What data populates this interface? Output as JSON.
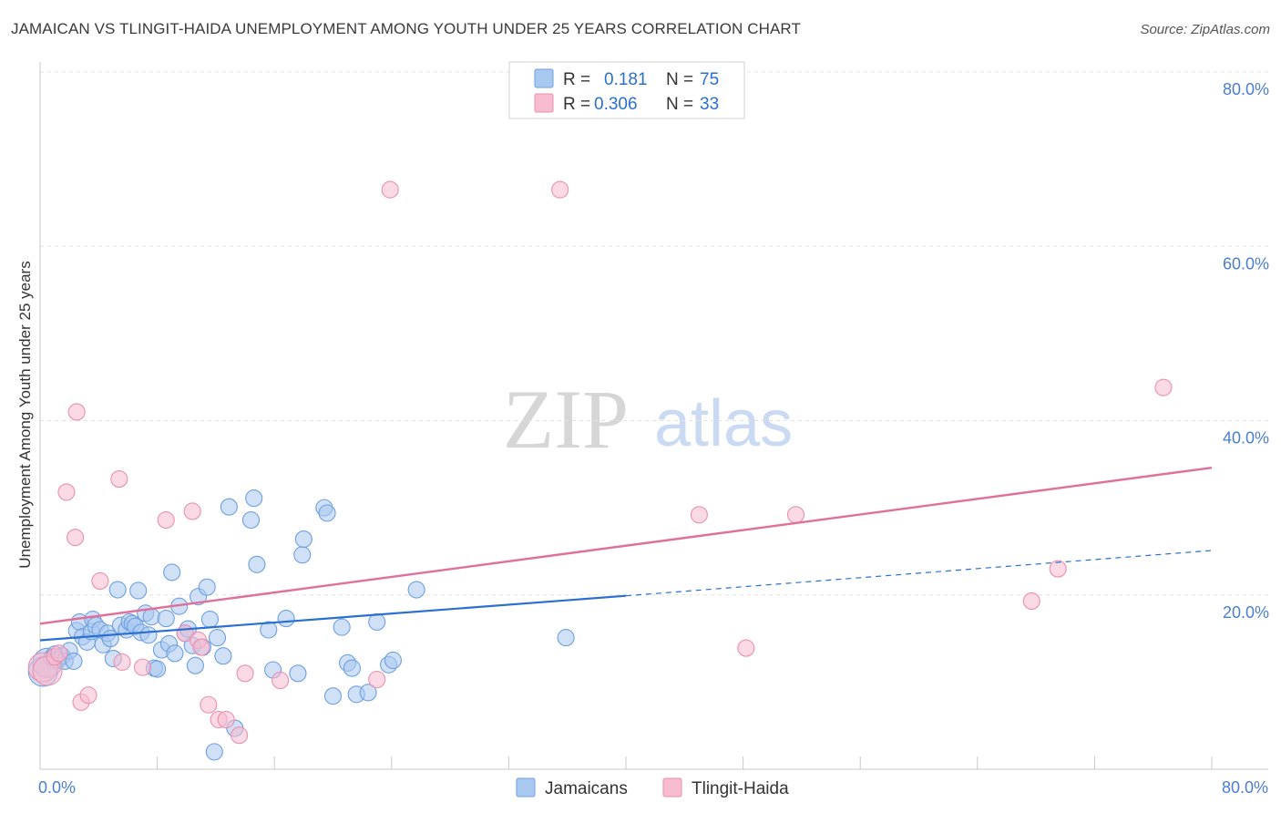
{
  "header": {
    "title": "JAMAICAN VS TLINGIT-HAIDA UNEMPLOYMENT AMONG YOUTH UNDER 25 YEARS CORRELATION CHART",
    "source": "Source: ZipAtlas.com"
  },
  "watermark": {
    "zip": "ZIP",
    "atlas": "atlas"
  },
  "colors": {
    "jamaican_fill": "#a9c8f0",
    "jamaican_stroke": "#6d9fe0",
    "jamaican_line": "#2a6fd1",
    "tlingit_fill": "#f7bcd0",
    "tlingit_stroke": "#ea8fb0",
    "tlingit_line": "#e0709a",
    "axis_text": "#4a7fd1"
  },
  "legend": {
    "r_label": "R =",
    "n_label": "N =",
    "rows": [
      {
        "series": "Jamaicans",
        "r": "0.181",
        "n": "75"
      },
      {
        "series": "Tlingit-Haida",
        "r": "0.306",
        "n": "33"
      }
    ]
  },
  "chart_data": {
    "type": "scatter",
    "title": "JAMAICAN VS TLINGIT-HAIDA UNEMPLOYMENT AMONG YOUTH UNDER 25 YEARS CORRELATION CHART",
    "xlabel": "",
    "ylabel": "Unemployment Among Youth under 25 years",
    "xlim": [
      0,
      80
    ],
    "ylim": [
      0,
      80
    ],
    "x_tick_labels": [
      "0.0%",
      "80.0%"
    ],
    "y_ticks": [
      20,
      40,
      60,
      80
    ],
    "y_tick_labels": [
      "20.0%",
      "40.0%",
      "60.0%",
      "80.0%"
    ],
    "grid": true,
    "legend_position": "top-center",
    "series": [
      {
        "name": "Jamaicans",
        "trend": {
          "x0": 0,
          "y0": 14.8,
          "x1": 40,
          "y1": 19.9,
          "dashed_to_x": 80,
          "dashed_to_y": 25.1
        },
        "points": [
          [
            0.2,
            11.2
          ],
          [
            0.5,
            12.2
          ],
          [
            0.8,
            12.8
          ],
          [
            1.0,
            13.2
          ],
          [
            1.2,
            12.5
          ],
          [
            1.5,
            13.0
          ],
          [
            1.7,
            12.4
          ],
          [
            2.0,
            13.6
          ],
          [
            2.3,
            12.4
          ],
          [
            2.5,
            15.9
          ],
          [
            2.7,
            16.9
          ],
          [
            2.9,
            15.2
          ],
          [
            3.2,
            14.6
          ],
          [
            3.5,
            15.8
          ],
          [
            3.6,
            17.2
          ],
          [
            3.8,
            16.5
          ],
          [
            4.1,
            16.0
          ],
          [
            4.3,
            14.3
          ],
          [
            4.6,
            15.6
          ],
          [
            4.8,
            15.0
          ],
          [
            5.0,
            12.7
          ],
          [
            5.3,
            20.6
          ],
          [
            5.5,
            16.5
          ],
          [
            5.9,
            16.0
          ],
          [
            6.1,
            16.9
          ],
          [
            6.3,
            16.7
          ],
          [
            6.5,
            16.4
          ],
          [
            6.7,
            20.5
          ],
          [
            6.9,
            15.7
          ],
          [
            7.2,
            17.9
          ],
          [
            7.4,
            15.4
          ],
          [
            7.6,
            17.5
          ],
          [
            7.8,
            11.6
          ],
          [
            8.0,
            11.5
          ],
          [
            8.3,
            13.7
          ],
          [
            8.6,
            17.3
          ],
          [
            8.8,
            14.4
          ],
          [
            9.0,
            22.6
          ],
          [
            9.2,
            13.3
          ],
          [
            9.5,
            18.7
          ],
          [
            9.9,
            15.6
          ],
          [
            10.1,
            16.1
          ],
          [
            10.4,
            14.2
          ],
          [
            10.6,
            11.9
          ],
          [
            10.8,
            19.8
          ],
          [
            11.1,
            14.0
          ],
          [
            11.4,
            20.9
          ],
          [
            11.6,
            17.2
          ],
          [
            11.9,
            2.0
          ],
          [
            12.1,
            15.1
          ],
          [
            12.5,
            13.0
          ],
          [
            12.9,
            30.1
          ],
          [
            13.3,
            4.7
          ],
          [
            14.4,
            28.6
          ],
          [
            14.6,
            31.1
          ],
          [
            14.8,
            23.5
          ],
          [
            15.6,
            16.0
          ],
          [
            15.9,
            11.4
          ],
          [
            16.8,
            17.3
          ],
          [
            17.6,
            11.0
          ],
          [
            17.9,
            24.6
          ],
          [
            18.0,
            26.4
          ],
          [
            19.4,
            30.0
          ],
          [
            19.6,
            29.4
          ],
          [
            20.0,
            8.4
          ],
          [
            20.6,
            16.3
          ],
          [
            21.0,
            12.2
          ],
          [
            21.3,
            11.6
          ],
          [
            21.6,
            8.6
          ],
          [
            22.4,
            8.8
          ],
          [
            23.0,
            16.9
          ],
          [
            23.8,
            12.0
          ],
          [
            24.1,
            12.5
          ],
          [
            25.7,
            20.6
          ],
          [
            35.9,
            15.1
          ]
        ]
      },
      {
        "name": "Tlingit-Haida",
        "trend": {
          "x0": 0,
          "y0": 16.7,
          "x1": 80,
          "y1": 34.6
        },
        "points": [
          [
            0.2,
            11.7
          ],
          [
            0.5,
            11.3
          ],
          [
            1.0,
            12.9
          ],
          [
            1.3,
            13.3
          ],
          [
            1.8,
            31.8
          ],
          [
            2.4,
            26.6
          ],
          [
            2.5,
            41.0
          ],
          [
            2.8,
            7.7
          ],
          [
            3.3,
            8.5
          ],
          [
            4.1,
            21.6
          ],
          [
            5.4,
            33.3
          ],
          [
            5.6,
            12.3
          ],
          [
            7.0,
            11.7
          ],
          [
            8.6,
            28.6
          ],
          [
            9.9,
            15.6
          ],
          [
            10.4,
            29.6
          ],
          [
            10.8,
            14.8
          ],
          [
            11.0,
            14.0
          ],
          [
            11.5,
            7.4
          ],
          [
            12.2,
            5.7
          ],
          [
            12.7,
            5.7
          ],
          [
            13.6,
            3.9
          ],
          [
            14.0,
            11.0
          ],
          [
            16.4,
            10.2
          ],
          [
            23.0,
            10.3
          ],
          [
            23.9,
            66.5
          ],
          [
            35.5,
            66.5
          ],
          [
            45.0,
            29.2
          ],
          [
            48.2,
            13.9
          ],
          [
            51.6,
            29.2
          ],
          [
            67.7,
            19.3
          ],
          [
            69.5,
            23.0
          ],
          [
            76.7,
            43.8
          ]
        ]
      }
    ]
  }
}
